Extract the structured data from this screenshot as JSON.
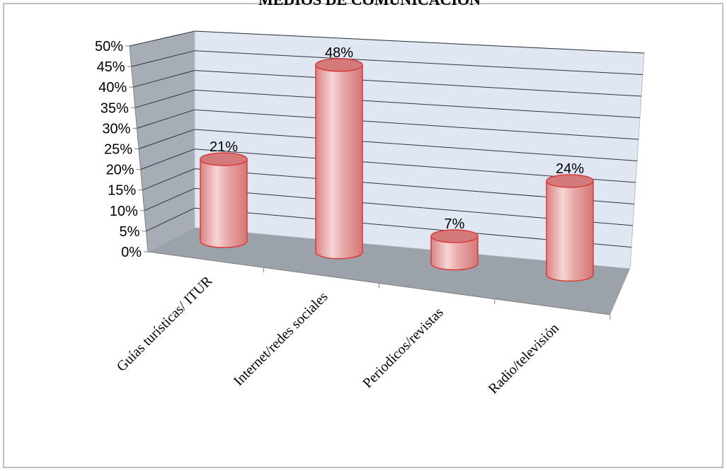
{
  "chart_data": {
    "type": "bar",
    "style": "3d-cylinder",
    "title": "MEDIOS DE COMUNICACIÓN",
    "categories": [
      "Guías turísticas/ ITUR",
      "Internet/redes sociales",
      "Periodicos/revistas",
      "Radio/televisión"
    ],
    "values": [
      21,
      48,
      7,
      24
    ],
    "data_labels": [
      "21%",
      "48%",
      "7%",
      "24%"
    ],
    "ylim": [
      0,
      50
    ],
    "yticks": [
      "0%",
      "5%",
      "10%",
      "15%",
      "20%",
      "25%",
      "30%",
      "35%",
      "40%",
      "45%",
      "50%"
    ],
    "xlabel": "",
    "ylabel": "",
    "grid": true,
    "legend": "none",
    "colors": {
      "bar_fill": "#e8a6a6",
      "bar_highlight": "#f6d4d4",
      "bar_shade": "#d98484",
      "bar_top": "#d47a7a",
      "bar_edge": "#d83a3a",
      "back_wall": "#dfe7f2",
      "side_wall": "#a7adb4",
      "floor": "#9ca2a9",
      "grid_line": "#2e3640"
    }
  }
}
